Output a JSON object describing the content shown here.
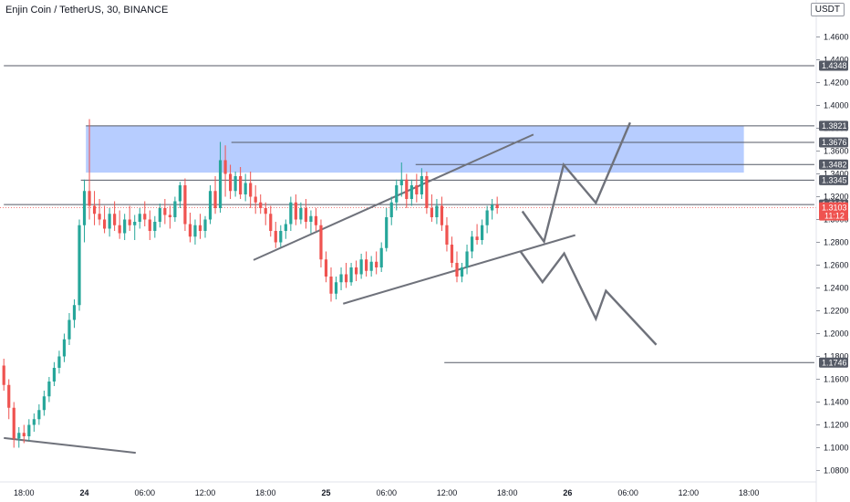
{
  "header": {
    "title": "Enjin Coin / TetherUS, 30, BINANCE",
    "currency": "USDT"
  },
  "chart_data": {
    "type": "candlestick",
    "symbol": "ENJUSDT",
    "interval": "30",
    "exchange": "BINANCE",
    "ylim": [
      1.07,
      1.49
    ],
    "y_ticks": [
      "1.0800",
      "1.1000",
      "1.1200",
      "1.1400",
      "1.1600",
      "1.1800",
      "1.2000",
      "1.2200",
      "1.2400",
      "1.2600",
      "1.2800",
      "1.3000",
      "1.3200",
      "1.3400",
      "1.3600",
      "1.3800",
      "1.4000",
      "1.4200",
      "1.4400",
      "1.4600"
    ],
    "x_ticks": [
      {
        "label": "18:00",
        "i": 4
      },
      {
        "label": "24",
        "i": 16
      },
      {
        "label": "06:00",
        "i": 28
      },
      {
        "label": "12:00",
        "i": 40
      },
      {
        "label": "18:00",
        "i": 52
      },
      {
        "label": "25",
        "i": 64
      },
      {
        "label": "06:00",
        "i": 76
      },
      {
        "label": "12:00",
        "i": 88
      },
      {
        "label": "18:00",
        "i": 100
      },
      {
        "label": "26",
        "i": 112
      },
      {
        "label": "06:00",
        "i": 124
      },
      {
        "label": "12:00",
        "i": 136
      },
      {
        "label": "18:00",
        "i": 148
      }
    ],
    "candles": [
      [
        1.172,
        1.178,
        1.15,
        1.155
      ],
      [
        1.155,
        1.16,
        1.125,
        1.135
      ],
      [
        1.135,
        1.14,
        1.1,
        1.108
      ],
      [
        1.108,
        1.118,
        1.1,
        1.113
      ],
      [
        1.113,
        1.12,
        1.104,
        1.11
      ],
      [
        1.11,
        1.125,
        1.106,
        1.12
      ],
      [
        1.12,
        1.13,
        1.114,
        1.125
      ],
      [
        1.125,
        1.138,
        1.12,
        1.133
      ],
      [
        1.133,
        1.15,
        1.128,
        1.145
      ],
      [
        1.145,
        1.162,
        1.14,
        1.158
      ],
      [
        1.158,
        1.175,
        1.154,
        1.17
      ],
      [
        1.17,
        1.185,
        1.165,
        1.18
      ],
      [
        1.18,
        1.2,
        1.175,
        1.195
      ],
      [
        1.195,
        1.218,
        1.19,
        1.212
      ],
      [
        1.212,
        1.23,
        1.205,
        1.225
      ],
      [
        1.225,
        1.3,
        1.22,
        1.295
      ],
      [
        1.295,
        1.335,
        1.28,
        1.325
      ],
      [
        1.325,
        1.388,
        1.3,
        1.312
      ],
      [
        1.312,
        1.325,
        1.295,
        1.305
      ],
      [
        1.305,
        1.318,
        1.295,
        1.3
      ],
      [
        1.3,
        1.312,
        1.288,
        1.292
      ],
      [
        1.292,
        1.31,
        1.285,
        1.305
      ],
      [
        1.305,
        1.316,
        1.29,
        1.295
      ],
      [
        1.295,
        1.308,
        1.283,
        1.288
      ],
      [
        1.288,
        1.305,
        1.282,
        1.3
      ],
      [
        1.3,
        1.312,
        1.29,
        1.295
      ],
      [
        1.295,
        1.304,
        1.282,
        1.298
      ],
      [
        1.298,
        1.31,
        1.292,
        1.305
      ],
      [
        1.305,
        1.316,
        1.294,
        1.3
      ],
      [
        1.3,
        1.308,
        1.282,
        1.29
      ],
      [
        1.29,
        1.303,
        1.284,
        1.298
      ],
      [
        1.298,
        1.314,
        1.293,
        1.31
      ],
      [
        1.31,
        1.318,
        1.296,
        1.304
      ],
      [
        1.304,
        1.312,
        1.292,
        1.302
      ],
      [
        1.302,
        1.32,
        1.298,
        1.316
      ],
      [
        1.316,
        1.333,
        1.31,
        1.33
      ],
      [
        1.33,
        1.336,
        1.29,
        1.296
      ],
      [
        1.296,
        1.306,
        1.28,
        1.285
      ],
      [
        1.285,
        1.3,
        1.278,
        1.295
      ],
      [
        1.295,
        1.305,
        1.283,
        1.29
      ],
      [
        1.29,
        1.303,
        1.284,
        1.3
      ],
      [
        1.3,
        1.33,
        1.296,
        1.325
      ],
      [
        1.325,
        1.338,
        1.305,
        1.31
      ],
      [
        1.31,
        1.368,
        1.306,
        1.352
      ],
      [
        1.352,
        1.365,
        1.32,
        1.34
      ],
      [
        1.34,
        1.348,
        1.318,
        1.325
      ],
      [
        1.325,
        1.342,
        1.32,
        1.338
      ],
      [
        1.338,
        1.346,
        1.318,
        1.322
      ],
      [
        1.322,
        1.34,
        1.316,
        1.332
      ],
      [
        1.332,
        1.342,
        1.31,
        1.32
      ],
      [
        1.32,
        1.33,
        1.305,
        1.315
      ],
      [
        1.315,
        1.322,
        1.305,
        1.31
      ],
      [
        1.31,
        1.315,
        1.295,
        1.305
      ],
      [
        1.305,
        1.312,
        1.285,
        1.29
      ],
      [
        1.29,
        1.298,
        1.275,
        1.28
      ],
      [
        1.28,
        1.295,
        1.276,
        1.29
      ],
      [
        1.29,
        1.3,
        1.283,
        1.296
      ],
      [
        1.296,
        1.32,
        1.29,
        1.315
      ],
      [
        1.315,
        1.322,
        1.295,
        1.3
      ],
      [
        1.3,
        1.315,
        1.296,
        1.31
      ],
      [
        1.31,
        1.318,
        1.292,
        1.298
      ],
      [
        1.298,
        1.308,
        1.288,
        1.303
      ],
      [
        1.303,
        1.31,
        1.29,
        1.295
      ],
      [
        1.295,
        1.3,
        1.258,
        1.265
      ],
      [
        1.265,
        1.272,
        1.245,
        1.25
      ],
      [
        1.25,
        1.258,
        1.228,
        1.235
      ],
      [
        1.235,
        1.25,
        1.23,
        1.245
      ],
      [
        1.245,
        1.258,
        1.238,
        1.252
      ],
      [
        1.252,
        1.262,
        1.24,
        1.245
      ],
      [
        1.245,
        1.262,
        1.242,
        1.258
      ],
      [
        1.258,
        1.264,
        1.246,
        1.252
      ],
      [
        1.252,
        1.27,
        1.248,
        1.265
      ],
      [
        1.265,
        1.272,
        1.25,
        1.255
      ],
      [
        1.255,
        1.268,
        1.25,
        1.263
      ],
      [
        1.263,
        1.272,
        1.252,
        1.258
      ],
      [
        1.258,
        1.28,
        1.254,
        1.275
      ],
      [
        1.275,
        1.31,
        1.272,
        1.302
      ],
      [
        1.302,
        1.32,
        1.295,
        1.315
      ],
      [
        1.315,
        1.335,
        1.308,
        1.33
      ],
      [
        1.33,
        1.35,
        1.32,
        1.335
      ],
      [
        1.335,
        1.34,
        1.31,
        1.318
      ],
      [
        1.318,
        1.335,
        1.312,
        1.33
      ],
      [
        1.33,
        1.34,
        1.315,
        1.322
      ],
      [
        1.322,
        1.345,
        1.318,
        1.338
      ],
      [
        1.338,
        1.342,
        1.305,
        1.31
      ],
      [
        1.31,
        1.322,
        1.298,
        1.302
      ],
      [
        1.302,
        1.318,
        1.296,
        1.312
      ],
      [
        1.312,
        1.32,
        1.29,
        1.295
      ],
      [
        1.295,
        1.302,
        1.272,
        1.278
      ],
      [
        1.278,
        1.285,
        1.258,
        1.262
      ],
      [
        1.262,
        1.272,
        1.245,
        1.25
      ],
      [
        1.25,
        1.262,
        1.245,
        1.258
      ],
      [
        1.258,
        1.278,
        1.252,
        1.272
      ],
      [
        1.272,
        1.29,
        1.266,
        1.285
      ],
      [
        1.285,
        1.296,
        1.278,
        1.282
      ],
      [
        1.282,
        1.3,
        1.278,
        1.295
      ],
      [
        1.295,
        1.312,
        1.288,
        1.308
      ],
      [
        1.308,
        1.318,
        1.3,
        1.313
      ],
      [
        1.313,
        1.32,
        1.305,
        1.31
      ]
    ],
    "drawings": {
      "supply_zone": {
        "i0": 16.3,
        "i1": 147,
        "y_top": 1.3821,
        "y_bottom": 1.3411,
        "color": "#aac4ff"
      },
      "horizontal_lines": [
        {
          "i0": 0,
          "i1": 161,
          "y": 1.4348
        },
        {
          "i0": 16.3,
          "i1": 161,
          "y": 1.3821
        },
        {
          "i0": 45.2,
          "i1": 161,
          "y": 1.3676
        },
        {
          "i0": 81.8,
          "i1": 161,
          "y": 1.3482
        },
        {
          "i0": 15.3,
          "i1": 161,
          "y": 1.3345
        },
        {
          "i0": 0,
          "i1": 161,
          "y": 1.3131
        },
        {
          "i0": 87.5,
          "i1": 161,
          "y": 1.1746
        }
      ],
      "trend_lines": [
        {
          "i0": 0,
          "y0": 1.1085,
          "i1": 26.2,
          "y1": 1.0955
        },
        {
          "i0": 49.6,
          "y0": 1.2645,
          "i1": 105.2,
          "y1": 1.3745
        },
        {
          "i0": 67.4,
          "y0": 1.2262,
          "i1": 113.5,
          "y1": 1.2863
        }
      ],
      "scenario_up": {
        "i": [
          103.0,
          107.3,
          111.2,
          117.6,
          124.4
        ],
        "y": [
          1.3072,
          1.2806,
          1.348,
          1.3146,
          1.385
        ]
      },
      "scenario_down": {
        "i": [
          102.6,
          107.0,
          111.3,
          117.6,
          119.6,
          129.6
        ],
        "y": [
          1.2722,
          1.2451,
          1.2703,
          1.213,
          1.2375,
          1.1902
        ]
      },
      "dotted_price_line": 1.3103
    },
    "price_labels": [
      {
        "value": 1.4348,
        "text": "1.4348",
        "color": "#555a66"
      },
      {
        "value": 1.3821,
        "text": "1.3821",
        "color": "#555a66"
      },
      {
        "value": 1.3676,
        "text": "1.3676",
        "color": "#555a66"
      },
      {
        "value": 1.3482,
        "text": "1.3482",
        "color": "#555a66"
      },
      {
        "value": 1.3345,
        "text": "1.3345",
        "color": "#555a66"
      },
      {
        "value": 1.3131,
        "text": "1.3131",
        "color": "#555a66"
      },
      {
        "value": 1.1746,
        "text": "1.1746",
        "color": "#555a66"
      }
    ],
    "current_price": {
      "value": 1.3103,
      "text": "1.3103",
      "countdown": "11:12",
      "color": "#ef5350"
    },
    "colors": {
      "up": "#26a69a",
      "down": "#ef5350",
      "lines": "#555a66",
      "drawing": "#6f727b"
    }
  }
}
